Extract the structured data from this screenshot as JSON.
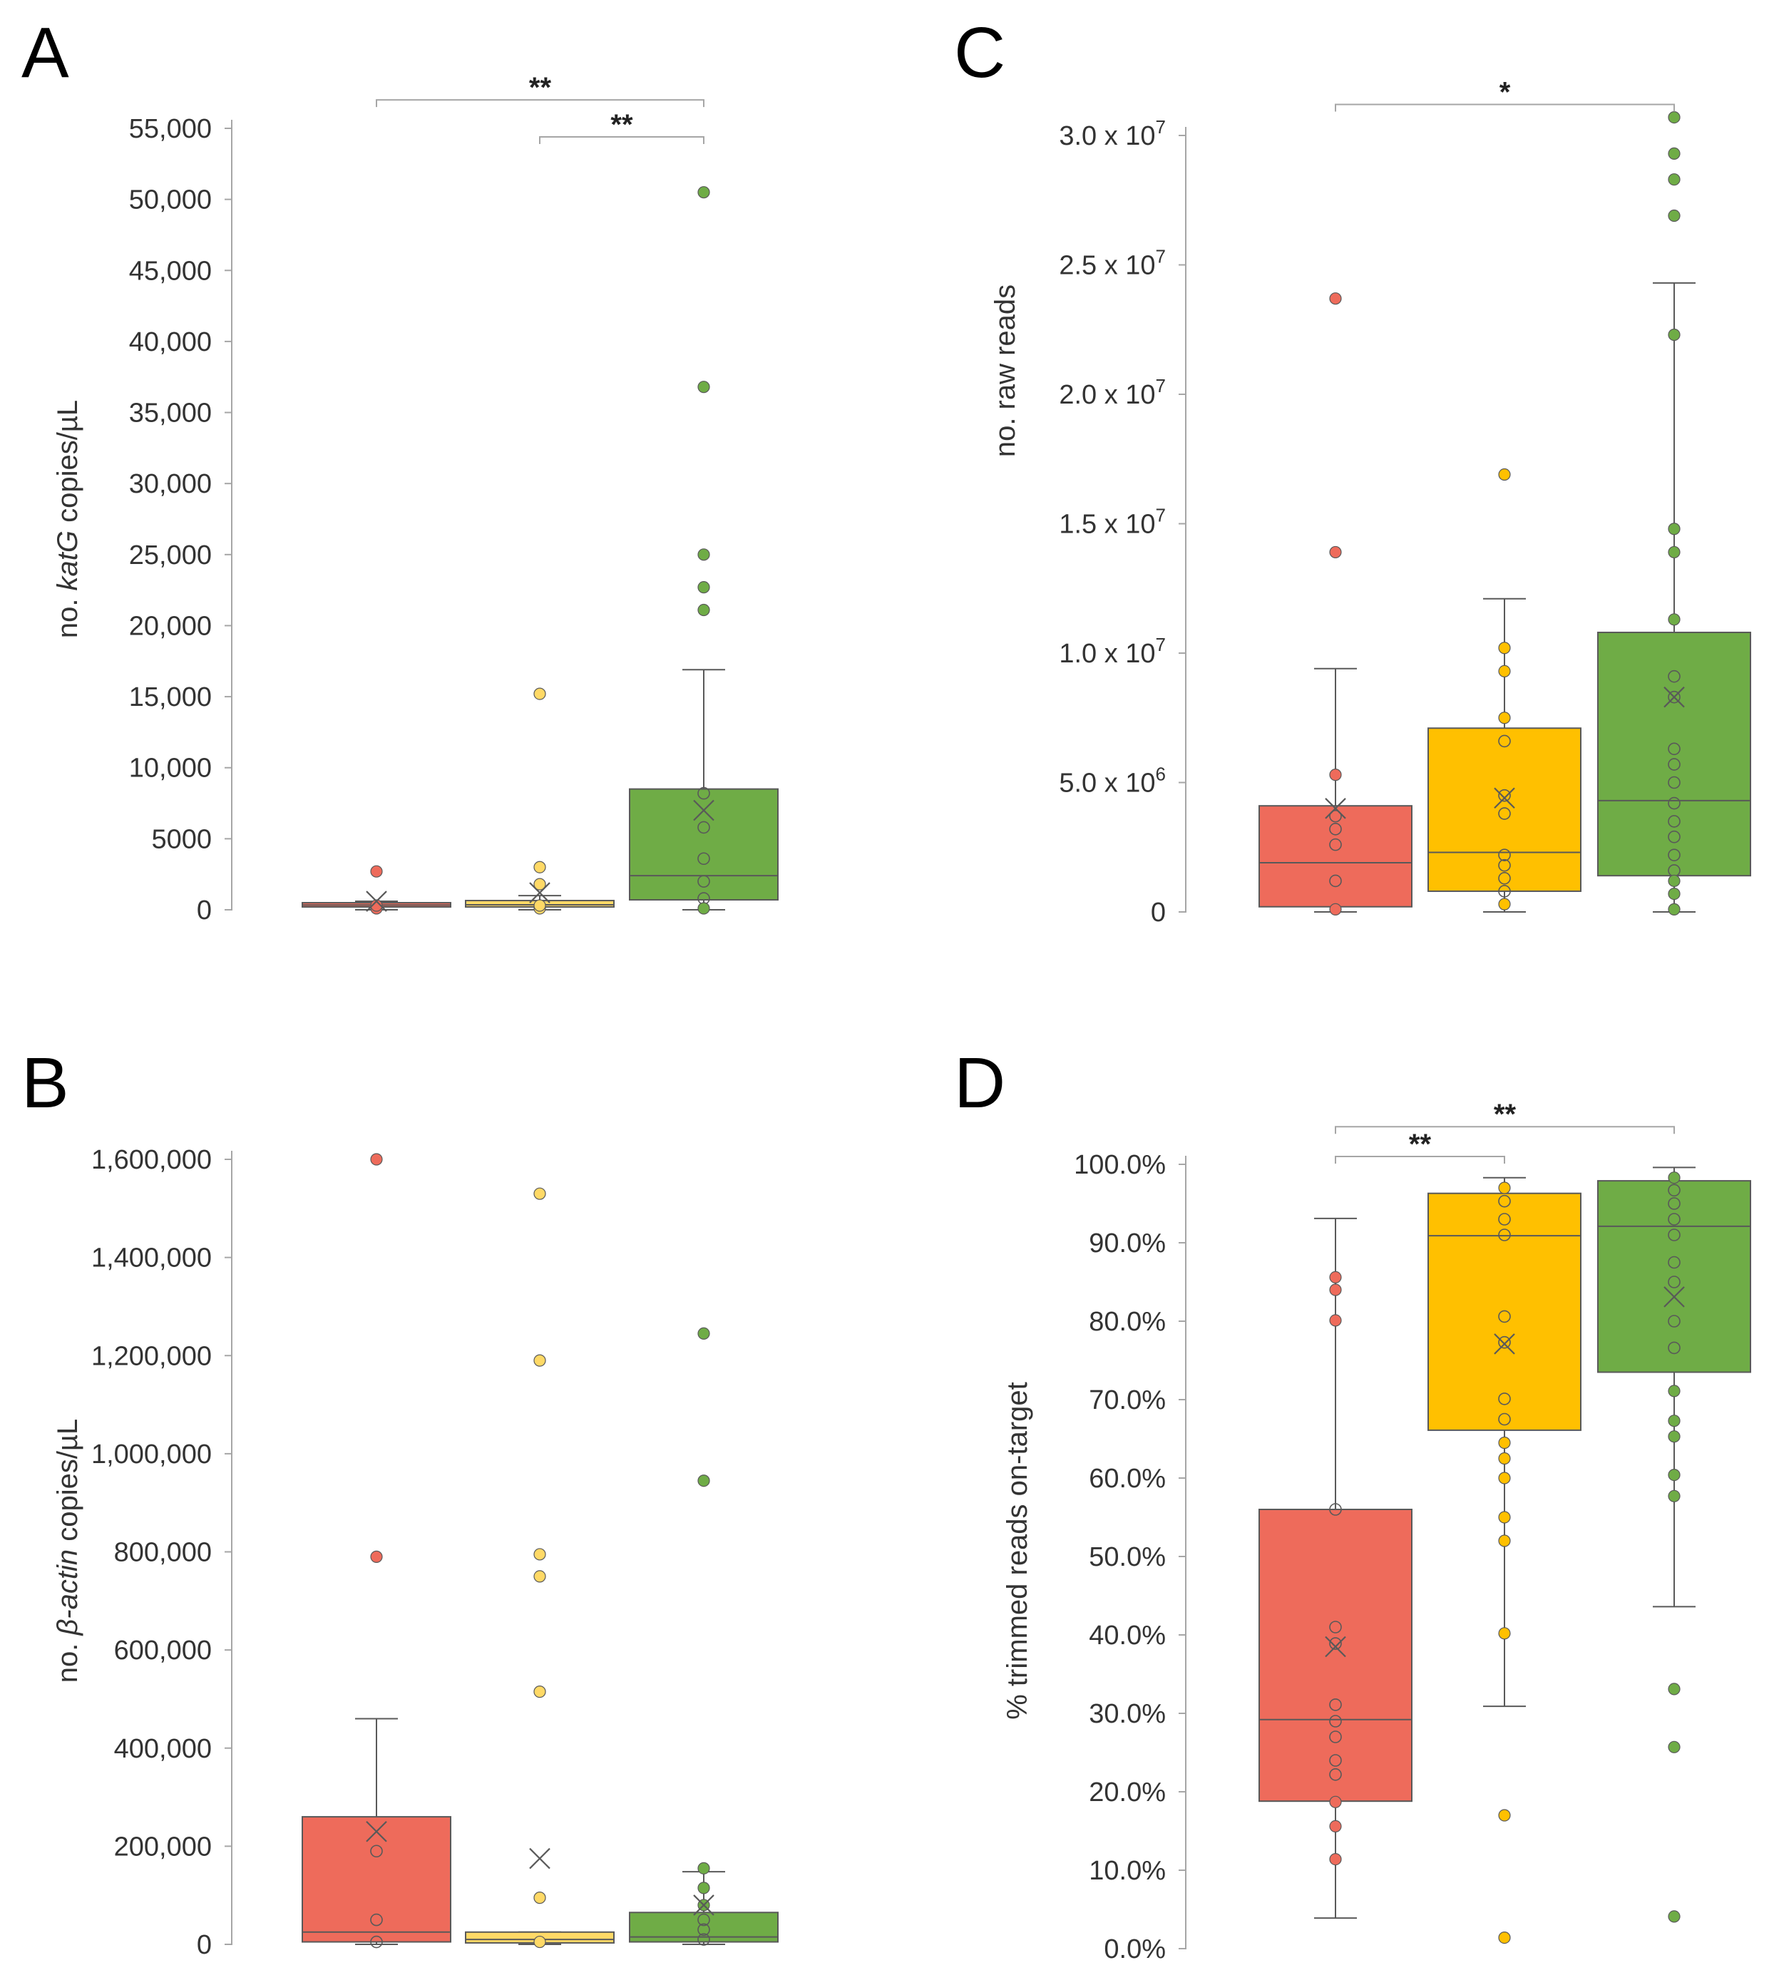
{
  "colors": {
    "g1": "#ee6b5b",
    "g2": "#ffc000",
    "g3": "#6fac46",
    "g2_light": "#ffd966",
    "axis": "#a6a6a6",
    "line": "#595959"
  },
  "chart_data": [
    {
      "id": "A",
      "panel_label": "A",
      "type": "box",
      "ylabel_pre": "no. ",
      "ylabel_italic": "katG",
      "ylabel_post": " copies/µL",
      "ylim": [
        0,
        55000
      ],
      "yticks": [
        0,
        5000,
        10000,
        15000,
        20000,
        25000,
        30000,
        35000,
        40000,
        45000,
        50000,
        55000
      ],
      "ytick_labels": [
        "0",
        "5000",
        "10,000",
        "15,000",
        "20,000",
        "25,000",
        "30,000",
        "35,000",
        "40,000",
        "45,000",
        "50,000",
        "55,000"
      ],
      "series": [
        {
          "color": "g1",
          "q1": 200,
          "median": 330,
          "q3": 500,
          "whisker_low": 0,
          "whisker_high": 600,
          "mean": 600,
          "points": [
            2700,
            100,
            300
          ],
          "outlier_style": "filled"
        },
        {
          "color": "g2_light",
          "q1": 200,
          "median": 350,
          "q3": 650,
          "whisker_low": 0,
          "whisker_high": 1000,
          "mean": 1200,
          "points": [
            15200,
            3000,
            1800,
            100,
            300
          ],
          "outlier_style": "filled"
        },
        {
          "color": "g3",
          "q1": 700,
          "median": 2400,
          "q3": 8500,
          "whisker_low": 0,
          "whisker_high": 16900,
          "mean": 7000,
          "points": [
            50500,
            36800,
            25000,
            22700,
            21100,
            8200,
            5800,
            3600,
            2000,
            800,
            100
          ],
          "outlier_style": "filled"
        }
      ],
      "significance": [
        {
          "from": 0,
          "to": 2,
          "label": "**",
          "y": 57000
        },
        {
          "from": 1,
          "to": 2,
          "label": "**",
          "y": 54400
        }
      ]
    },
    {
      "id": "B",
      "panel_label": "B",
      "type": "box",
      "ylabel_pre": "no. ",
      "ylabel_italic": "β-actin",
      "ylabel_post": " copies/µL",
      "ylim": [
        0,
        1600000
      ],
      "yticks": [
        0,
        200000,
        400000,
        600000,
        800000,
        1000000,
        1200000,
        1400000,
        1600000
      ],
      "ytick_labels": [
        "0",
        "200,000",
        "400,000",
        "600,000",
        "800,000",
        "1,000,000",
        "1,200,000",
        "1,400,000",
        "1,600,000"
      ],
      "series": [
        {
          "color": "g1",
          "q1": 5000,
          "median": 25000,
          "q3": 260000,
          "whisker_low": 0,
          "whisker_high": 460000,
          "mean": 230000,
          "points": [
            1600000,
            790000,
            190000,
            50000,
            5000
          ],
          "outlier_style": "filled"
        },
        {
          "color": "g2_light",
          "q1": 3000,
          "median": 10000,
          "q3": 25000,
          "whisker_low": 0,
          "whisker_high": 25000,
          "mean": 175000,
          "points": [
            1530000,
            1190000,
            795000,
            750000,
            515000,
            95000,
            5000
          ],
          "outlier_style": "filled"
        },
        {
          "color": "g3",
          "q1": 5000,
          "median": 15000,
          "q3": 65000,
          "whisker_low": 0,
          "whisker_high": 148000,
          "mean": 80000,
          "points": [
            1245000,
            945000,
            155000,
            115000,
            80000,
            50000,
            30000,
            10000
          ],
          "outlier_style": "filled"
        }
      ],
      "significance": []
    },
    {
      "id": "C",
      "panel_label": "C",
      "type": "box",
      "ylabel_pre": "no. raw reads",
      "ylabel_italic": "",
      "ylabel_post": "",
      "ylim": [
        0,
        30000000
      ],
      "yticks": [
        0,
        5000000,
        10000000,
        15000000,
        20000000,
        25000000,
        30000000
      ],
      "ytick_labels": [
        "0",
        "5.0 x 10",
        "1.0 x 10",
        "1.5 x 10",
        "2.0 x 10",
        "2.5 x 10",
        "3.0 x 10"
      ],
      "ytick_exponents": [
        "",
        "6",
        "7",
        "7",
        "7",
        "7",
        "7"
      ],
      "series": [
        {
          "color": "g1",
          "q1": 200000,
          "median": 1900000,
          "q3": 4100000,
          "whisker_low": 0,
          "whisker_high": 9400000,
          "mean": 4000000,
          "points": [
            23700000,
            13900000,
            5300000,
            3700000,
            3200000,
            2600000,
            1200000,
            100000
          ],
          "outlier_style": "filled"
        },
        {
          "color": "g2",
          "q1": 800000,
          "median": 2300000,
          "q3": 7100000,
          "whisker_low": 0,
          "whisker_high": 12100000,
          "mean": 4400000,
          "points": [
            16900000,
            10200000,
            9300000,
            7500000,
            6600000,
            4500000,
            3800000,
            2200000,
            1800000,
            1300000,
            800000,
            300000
          ],
          "outlier_style": "filled"
        },
        {
          "color": "g3",
          "q1": 1400000,
          "median": 4300000,
          "q3": 10800000,
          "whisker_low": 0,
          "whisker_high": 24300000,
          "mean": 8300000,
          "points": [
            30700000,
            29300000,
            28300000,
            26900000,
            22300000,
            14800000,
            13900000,
            11300000,
            9100000,
            8300000,
            6300000,
            5700000,
            5000000,
            4200000,
            3500000,
            2900000,
            2200000,
            1600000,
            1200000,
            700000,
            100000
          ],
          "outlier_style": "filled"
        }
      ],
      "significance": [
        {
          "from": 0,
          "to": 2,
          "label": "*",
          "y": 31200000
        }
      ]
    },
    {
      "id": "D",
      "panel_label": "D",
      "type": "box",
      "ylabel_pre": "% trimmed reads on-target",
      "ylabel_italic": "",
      "ylabel_post": "",
      "ylim": [
        0,
        100
      ],
      "yticks": [
        0,
        10,
        20,
        30,
        40,
        50,
        60,
        70,
        80,
        90,
        100
      ],
      "ytick_labels": [
        "0.0%",
        "10.0%",
        "20.0%",
        "30.0%",
        "40.0%",
        "50.0%",
        "60.0%",
        "70.0%",
        "80.0%",
        "90.0%",
        "100.0%"
      ],
      "series": [
        {
          "color": "g1",
          "q1": 18.8,
          "median": 29.2,
          "q3": 56.0,
          "whisker_low": 3.9,
          "whisker_high": 93.1,
          "mean": 38.5,
          "points": [
            85.6,
            84.0,
            80.1,
            56.0,
            41.0,
            38.9,
            31.1,
            29.0,
            27.0,
            24.0,
            22.2,
            18.7,
            15.6,
            11.4
          ],
          "outlier_style": "filled"
        },
        {
          "color": "g2",
          "q1": 66.1,
          "median": 90.9,
          "q3": 96.3,
          "whisker_low": 30.9,
          "whisker_high": 98.3,
          "mean": 77.1,
          "points": [
            97.0,
            95.3,
            93.0,
            91.0,
            80.6,
            77.3,
            70.1,
            67.5,
            64.5,
            62.5,
            60.0,
            55.0,
            52.0,
            40.2,
            17.0,
            1.4
          ],
          "outlier_style": "filled"
        },
        {
          "color": "g3",
          "q1": 73.5,
          "median": 92.1,
          "q3": 97.9,
          "whisker_low": 43.6,
          "whisker_high": 99.6,
          "mean": 83.1,
          "points": [
            98.3,
            96.7,
            95.0,
            93.0,
            91.0,
            87.5,
            85.0,
            80.0,
            76.6,
            71.1,
            67.3,
            65.3,
            60.4,
            57.7,
            33.1,
            25.7,
            4.1
          ],
          "outlier_style": "filled"
        }
      ],
      "significance": [
        {
          "from": 0,
          "to": 2,
          "label": "**",
          "y": 104.8
        },
        {
          "from": 0,
          "to": 1,
          "label": "**",
          "y": 101
        }
      ]
    }
  ]
}
